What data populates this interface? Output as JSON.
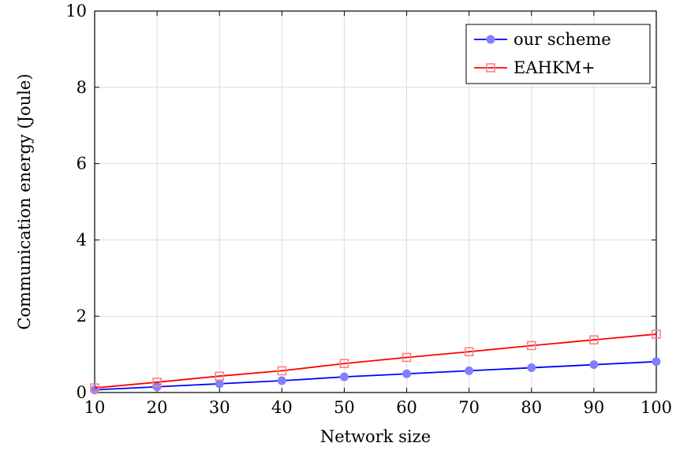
{
  "chart_data": {
    "type": "line",
    "title": "",
    "xlabel": "Network size",
    "ylabel": "Communication energy (Joule)",
    "xlim": [
      10,
      100
    ],
    "ylim": [
      0,
      10
    ],
    "xticks": [
      10,
      20,
      30,
      40,
      50,
      60,
      70,
      80,
      90,
      100
    ],
    "yticks": [
      0,
      2,
      4,
      6,
      8,
      10
    ],
    "grid": true,
    "legend_position": "top-right",
    "x": [
      10,
      20,
      30,
      40,
      50,
      60,
      70,
      80,
      90,
      100
    ],
    "series": [
      {
        "name": "our scheme",
        "color": "#0000ff",
        "marker_color": "#8080ff",
        "marker": "circle",
        "values": [
          0.07,
          0.15,
          0.23,
          0.31,
          0.41,
          0.49,
          0.57,
          0.65,
          0.73,
          0.81
        ]
      },
      {
        "name": "EAHKM+",
        "color": "#ff0000",
        "marker_color": "#ff8080",
        "marker": "square",
        "values": [
          0.12,
          0.27,
          0.43,
          0.57,
          0.76,
          0.92,
          1.07,
          1.23,
          1.38,
          1.53
        ]
      }
    ]
  }
}
